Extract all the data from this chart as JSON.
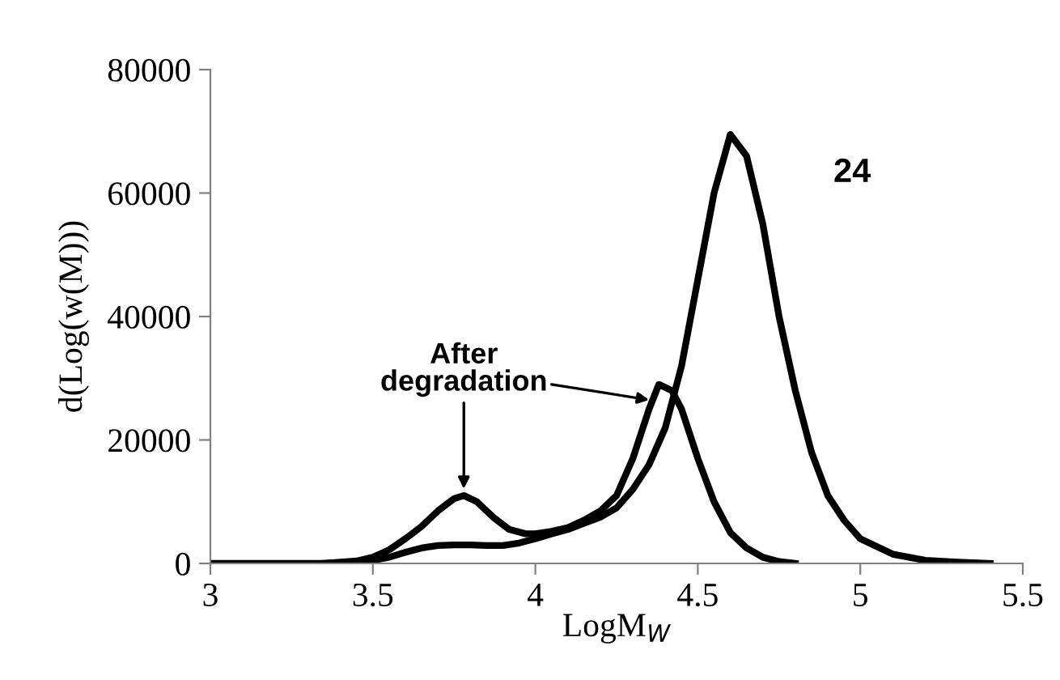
{
  "chart_data": {
    "type": "line",
    "xlabel": "LogM$_{W}$",
    "ylabel": "d(Log(w(M)))",
    "xlim": [
      3,
      5.5
    ],
    "xticks": [
      3,
      3.5,
      4,
      4.5,
      5,
      5.5
    ],
    "ylim": [
      0,
      80000
    ],
    "yticks": [
      0,
      20000,
      40000,
      60000,
      80000
    ],
    "grid": false,
    "legend": false,
    "marker": "none",
    "line_style": "solid",
    "series": [
      {
        "color": "#000000",
        "x": [
          3.35,
          3.45,
          3.5,
          3.55,
          3.6,
          3.65,
          3.7,
          3.75,
          3.8,
          3.85,
          3.9,
          3.95,
          4.0,
          4.05,
          4.1,
          4.15,
          4.2,
          4.25,
          4.3,
          4.35,
          4.4,
          4.45,
          4.5,
          4.55,
          4.6,
          4.65,
          4.7,
          4.75,
          4.8,
          4.85,
          4.9,
          4.95,
          5.0,
          5.1,
          5.2,
          5.3,
          5.4
        ],
        "values": [
          0,
          200,
          500,
          1000,
          1800,
          2500,
          2900,
          3000,
          3000,
          2900,
          2900,
          3300,
          4000,
          4800,
          5500,
          6500,
          7500,
          9000,
          12000,
          16000,
          22000,
          32000,
          46000,
          60000,
          69500,
          66000,
          55000,
          40000,
          28000,
          18000,
          11000,
          7000,
          4000,
          1500,
          500,
          200,
          0
        ]
      },
      {
        "color": "#000000",
        "x": [
          3.0,
          3.35,
          3.45,
          3.5,
          3.55,
          3.6,
          3.65,
          3.7,
          3.75,
          3.78,
          3.82,
          3.87,
          3.92,
          3.97,
          4.0,
          4.05,
          4.1,
          4.15,
          4.2,
          4.25,
          4.3,
          4.35,
          4.38,
          4.42,
          4.45,
          4.5,
          4.55,
          4.6,
          4.65,
          4.7,
          4.75,
          4.8
        ],
        "values": [
          0,
          0,
          400,
          1000,
          2200,
          4000,
          6000,
          8500,
          10500,
          11000,
          10000,
          7500,
          5500,
          4800,
          4800,
          5200,
          5800,
          7000,
          8500,
          11000,
          17000,
          25000,
          29000,
          28000,
          25000,
          17000,
          10000,
          5000,
          2500,
          1000,
          300,
          0
        ]
      }
    ],
    "annotations": [
      {
        "text": "After degradation",
        "x": 3.78,
        "y": 11000
      },
      "24"
    ]
  }
}
